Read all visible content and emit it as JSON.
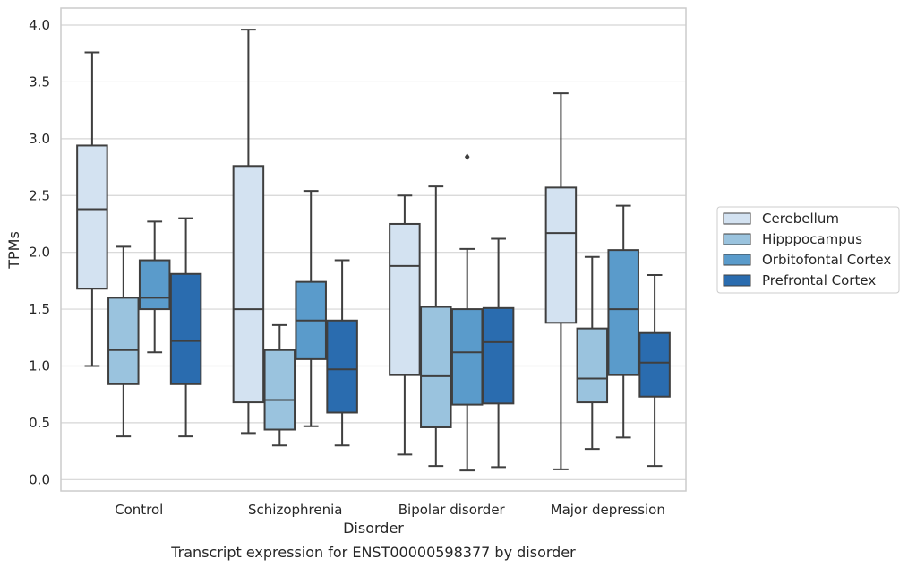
{
  "chart_data": {
    "type": "box",
    "title": "",
    "caption": "Transcript expression for ENST00000598377 by disorder",
    "xlabel": "Disorder",
    "ylabel": "TPMs",
    "ylim": [
      -0.1,
      4.15
    ],
    "yticks": [
      "0.0",
      "0.5",
      "1.0",
      "1.5",
      "2.0",
      "2.5",
      "3.0",
      "3.5",
      "4.0"
    ],
    "categories": [
      "Control",
      "Schizophrenia",
      "Bipolar disorder",
      "Major depression"
    ],
    "grid": "horizontal",
    "legend_position": "right",
    "series": [
      {
        "name": "Cerebellum",
        "color": "#d3e2f1",
        "boxes": [
          {
            "whisker_low": 1.0,
            "q1": 1.68,
            "median": 2.38,
            "q3": 2.94,
            "whisker_high": 3.76
          },
          {
            "whisker_low": 0.41,
            "q1": 0.68,
            "median": 1.5,
            "q3": 2.76,
            "whisker_high": 3.96
          },
          {
            "whisker_low": 0.22,
            "q1": 0.92,
            "median": 1.88,
            "q3": 2.25,
            "whisker_high": 2.5
          },
          {
            "whisker_low": 0.09,
            "q1": 1.38,
            "median": 2.17,
            "q3": 2.57,
            "whisker_high": 3.4
          }
        ]
      },
      {
        "name": "Hipppocampus",
        "color": "#9ac3de",
        "boxes": [
          {
            "whisker_low": 0.38,
            "q1": 0.84,
            "median": 1.14,
            "q3": 1.6,
            "whisker_high": 2.05
          },
          {
            "whisker_low": 0.3,
            "q1": 0.44,
            "median": 0.7,
            "q3": 1.14,
            "whisker_high": 1.36
          },
          {
            "whisker_low": 0.12,
            "q1": 0.46,
            "median": 0.91,
            "q3": 1.52,
            "whisker_high": 2.58
          },
          {
            "whisker_low": 0.27,
            "q1": 0.68,
            "median": 0.89,
            "q3": 1.33,
            "whisker_high": 1.96
          }
        ]
      },
      {
        "name": "Orbitofontal Cortex",
        "color": "#5a9bcb",
        "boxes": [
          {
            "whisker_low": 1.12,
            "q1": 1.5,
            "median": 1.6,
            "q3": 1.93,
            "whisker_high": 2.27
          },
          {
            "whisker_low": 0.47,
            "q1": 1.06,
            "median": 1.4,
            "q3": 1.74,
            "whisker_high": 2.54
          },
          {
            "whisker_low": 0.08,
            "q1": 0.66,
            "median": 1.12,
            "q3": 1.5,
            "whisker_high": 2.03,
            "outliers": [
              2.84
            ]
          },
          {
            "whisker_low": 0.37,
            "q1": 0.92,
            "median": 1.5,
            "q3": 2.02,
            "whisker_high": 2.41
          }
        ]
      },
      {
        "name": "Prefrontal Cortex",
        "color": "#2a6caf",
        "boxes": [
          {
            "whisker_low": 0.38,
            "q1": 0.84,
            "median": 1.22,
            "q3": 1.81,
            "whisker_high": 2.3
          },
          {
            "whisker_low": 0.3,
            "q1": 0.59,
            "median": 0.97,
            "q3": 1.4,
            "whisker_high": 1.93
          },
          {
            "whisker_low": 0.11,
            "q1": 0.67,
            "median": 1.21,
            "q3": 1.51,
            "whisker_high": 2.12
          },
          {
            "whisker_low": 0.12,
            "q1": 0.73,
            "median": 1.03,
            "q3": 1.29,
            "whisker_high": 1.8
          }
        ]
      }
    ]
  }
}
